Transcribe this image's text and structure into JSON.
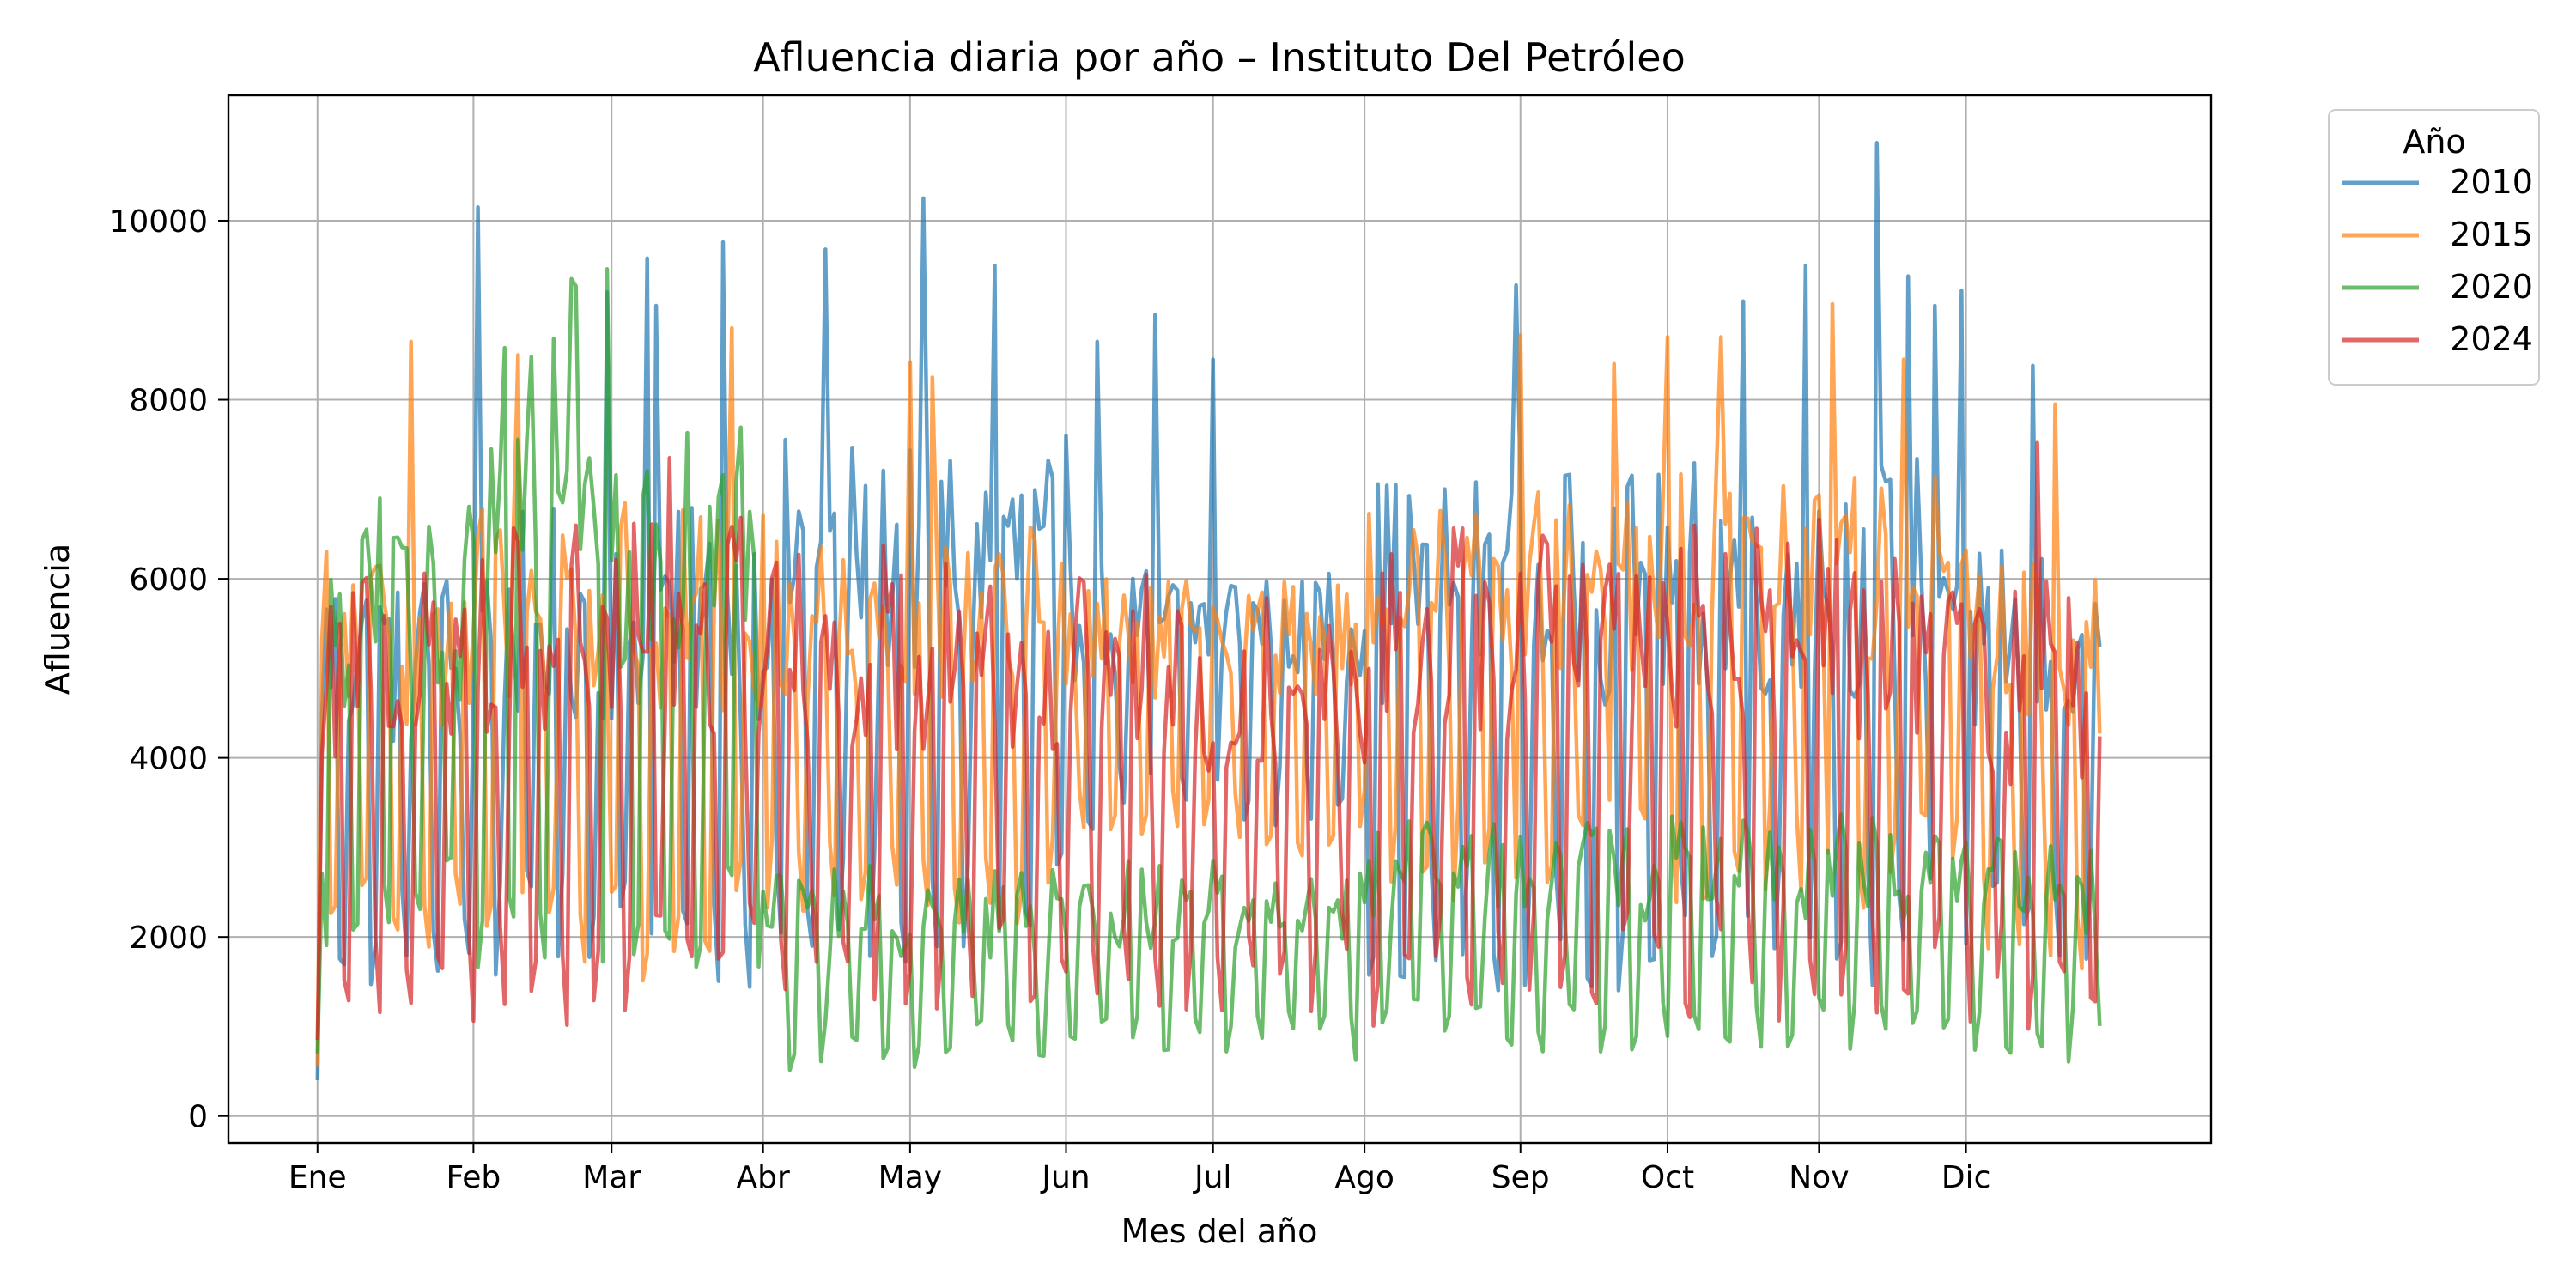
{
  "chart_data": {
    "type": "line",
    "title": "Afluencia diaria por año – Instituto Del Petróleo",
    "xlabel": "Mes del año",
    "ylabel": "Afluencia",
    "xlim": [
      -20,
      425
    ],
    "ylim": [
      -300,
      11400
    ],
    "grid": true,
    "x_ticks": [
      {
        "x": 0,
        "label": "Ene"
      },
      {
        "x": 35,
        "label": "Feb"
      },
      {
        "x": 66,
        "label": "Mar"
      },
      {
        "x": 100,
        "label": "Abr"
      },
      {
        "x": 133,
        "label": "May"
      },
      {
        "x": 168,
        "label": "Jun"
      },
      {
        "x": 201,
        "label": "Jul"
      },
      {
        "x": 235,
        "label": "Ago"
      },
      {
        "x": 270,
        "label": "Sep"
      },
      {
        "x": 303,
        "label": "Oct"
      },
      {
        "x": 337,
        "label": "Nov"
      },
      {
        "x": 370,
        "label": "Dic"
      }
    ],
    "y_ticks": [
      0,
      2000,
      4000,
      6000,
      8000,
      10000
    ],
    "legend": {
      "title": "Año",
      "position": "outside-right-top"
    },
    "series": [
      {
        "name": "2010",
        "color": "#1f77b4",
        "segments": [
          {
            "x0": 0,
            "x1": 35,
            "high": 6200,
            "low": 1400
          },
          {
            "x0": 35,
            "x1": 100,
            "high": 6800,
            "low": 1400
          },
          {
            "x0": 100,
            "x1": 168,
            "high": 7600,
            "low": 1500
          },
          {
            "x0": 168,
            "x1": 235,
            "high": 6200,
            "low": 3200
          },
          {
            "x0": 235,
            "x1": 303,
            "high": 7200,
            "low": 1400
          },
          {
            "x0": 303,
            "x1": 370,
            "high": 7400,
            "low": 1300
          },
          {
            "x0": 370,
            "x1": 400,
            "high": 6400,
            "low": 1400
          }
        ],
        "spikes": [
          {
            "x": 36,
            "y": 10150
          },
          {
            "x": 65,
            "y": 9200
          },
          {
            "x": 74,
            "y": 9580
          },
          {
            "x": 76,
            "y": 9050
          },
          {
            "x": 91,
            "y": 9760
          },
          {
            "x": 114,
            "y": 9680
          },
          {
            "x": 136,
            "y": 10250
          },
          {
            "x": 152,
            "y": 9500
          },
          {
            "x": 175,
            "y": 8650
          },
          {
            "x": 188,
            "y": 8950
          },
          {
            "x": 201,
            "y": 8450
          },
          {
            "x": 269,
            "y": 9280
          },
          {
            "x": 320,
            "y": 9100
          },
          {
            "x": 334,
            "y": 9500
          },
          {
            "x": 350,
            "y": 10870
          },
          {
            "x": 357,
            "y": 9380
          },
          {
            "x": 363,
            "y": 9050
          },
          {
            "x": 369,
            "y": 9220
          },
          {
            "x": 385,
            "y": 8380
          }
        ]
      },
      {
        "name": "2015",
        "color": "#ff7f0e",
        "segments": [
          {
            "x0": 0,
            "x1": 35,
            "high": 6400,
            "low": 1700
          },
          {
            "x0": 35,
            "x1": 100,
            "high": 6900,
            "low": 1500
          },
          {
            "x0": 100,
            "x1": 168,
            "high": 6600,
            "low": 2100
          },
          {
            "x0": 168,
            "x1": 235,
            "high": 6000,
            "low": 2900
          },
          {
            "x0": 235,
            "x1": 303,
            "high": 7000,
            "low": 2400
          },
          {
            "x0": 303,
            "x1": 370,
            "high": 7300,
            "low": 2300
          },
          {
            "x0": 370,
            "x1": 400,
            "high": 6200,
            "low": 1600
          }
        ],
        "spikes": [
          {
            "x": 21,
            "y": 8650
          },
          {
            "x": 45,
            "y": 8500
          },
          {
            "x": 93,
            "y": 8800
          },
          {
            "x": 133,
            "y": 8420
          },
          {
            "x": 138,
            "y": 8250
          },
          {
            "x": 270,
            "y": 8720
          },
          {
            "x": 291,
            "y": 8400
          },
          {
            "x": 303,
            "y": 8700
          },
          {
            "x": 315,
            "y": 8700
          },
          {
            "x": 340,
            "y": 9070
          },
          {
            "x": 356,
            "y": 8450
          },
          {
            "x": 390,
            "y": 7950
          }
        ]
      },
      {
        "name": "2020",
        "color": "#2ca02c",
        "segments": [
          {
            "x0": 0,
            "x1": 35,
            "high": 6900,
            "low": 1700
          },
          {
            "x0": 35,
            "x1": 100,
            "high": 7700,
            "low": 1600
          },
          {
            "x0": 100,
            "x1": 168,
            "high": 2800,
            "low": 500
          },
          {
            "x0": 168,
            "x1": 235,
            "high": 2900,
            "low": 600
          },
          {
            "x0": 235,
            "x1": 303,
            "high": 3300,
            "low": 700
          },
          {
            "x0": 303,
            "x1": 370,
            "high": 3400,
            "low": 700
          },
          {
            "x0": 370,
            "x1": 400,
            "high": 3100,
            "low": 600
          }
        ],
        "spikes": [
          {
            "x": 57,
            "y": 9350
          },
          {
            "x": 58,
            "y": 9270
          },
          {
            "x": 65,
            "y": 9460
          },
          {
            "x": 42,
            "y": 8580
          },
          {
            "x": 53,
            "y": 8680
          },
          {
            "x": 48,
            "y": 8480
          }
        ]
      },
      {
        "name": "2024",
        "color": "#d62728",
        "segments": [
          {
            "x0": 0,
            "x1": 35,
            "high": 6300,
            "low": 1000
          },
          {
            "x0": 35,
            "x1": 100,
            "high": 6700,
            "low": 1000
          },
          {
            "x0": 100,
            "x1": 168,
            "high": 6500,
            "low": 1100
          },
          {
            "x0": 168,
            "x1": 235,
            "high": 6100,
            "low": 1100
          },
          {
            "x0": 235,
            "x1": 303,
            "high": 6600,
            "low": 1000
          },
          {
            "x0": 303,
            "x1": 370,
            "high": 6700,
            "low": 1000
          },
          {
            "x0": 370,
            "x1": 400,
            "high": 6000,
            "low": 900
          }
        ],
        "spikes": [
          {
            "x": 79,
            "y": 7350
          },
          {
            "x": 386,
            "y": 7520
          }
        ]
      }
    ]
  }
}
